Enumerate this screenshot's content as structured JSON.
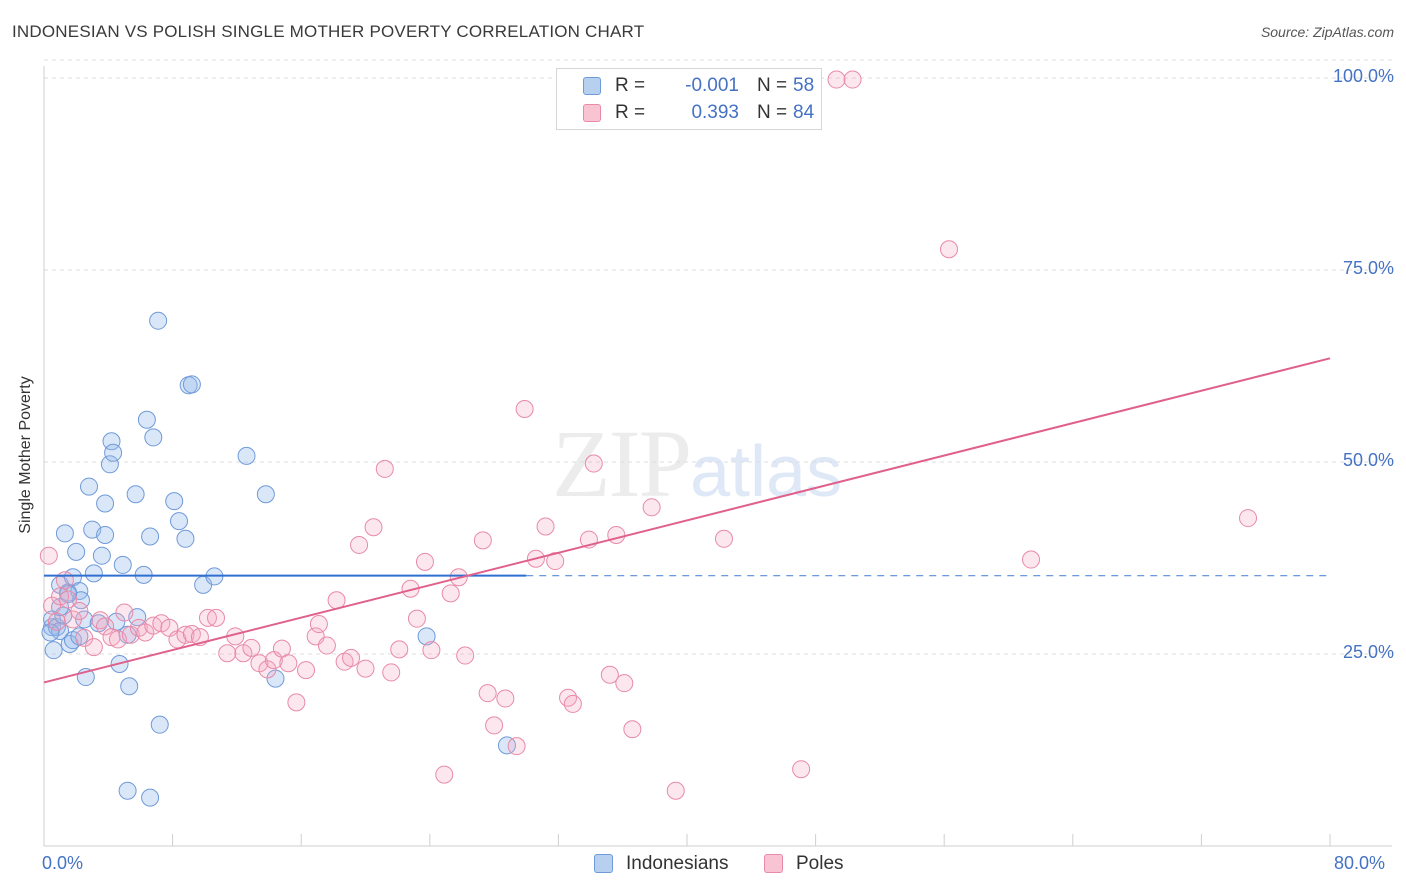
{
  "title": "INDONESIAN VS POLISH SINGLE MOTHER POVERTY CORRELATION CHART",
  "source": "Source: ZipAtlas.com",
  "watermark": {
    "zip": "ZIP",
    "atlas": "atlas"
  },
  "legend": {
    "rows": [
      {
        "r_label": "R =",
        "r_value": "-0.001",
        "n_label": "N =",
        "n_value": "58",
        "swatch_fill": "#b8d0f0",
        "swatch_stroke": "#6f9ad8"
      },
      {
        "r_label": "R =",
        "r_value": "0.393",
        "n_label": "N =",
        "n_value": "84",
        "swatch_fill": "#f8c4d4",
        "swatch_stroke": "#e88aa8"
      }
    ]
  },
  "bottom_legend": [
    {
      "label": "Indonesians",
      "fill": "#b8d0f0",
      "stroke": "#6f9ad8"
    },
    {
      "label": "Poles",
      "fill": "#f8c4d4",
      "stroke": "#e88aa8"
    }
  ],
  "colors": {
    "blue_fill": "rgba(150,185,235,0.35)",
    "blue_stroke": "#6f9ad8",
    "blue_line": "#2f6fd0",
    "pink_fill": "rgba(245,170,195,0.28)",
    "pink_stroke": "#e88aa8",
    "pink_line": "#e0608c",
    "grid": "#dddddd",
    "axis_label": "#4472c4"
  },
  "chart_data": {
    "type": "scatter",
    "title": "INDONESIAN VS POLISH SINGLE MOTHER POVERTY CORRELATION CHART",
    "xlabel": "",
    "ylabel": "Single Mother Poverty",
    "xlim": [
      0,
      80
    ],
    "ylim": [
      0,
      100
    ],
    "x_tick_labels": [
      "0.0%",
      "80.0%"
    ],
    "y_tick_labels": [
      "25.0%",
      "50.0%",
      "75.0%",
      "100.0%"
    ],
    "y_ticks": [
      25,
      50,
      75,
      100
    ],
    "x_minor_ticks": [
      0,
      8,
      16,
      24,
      32,
      40,
      48,
      56,
      64,
      72,
      80
    ],
    "series": [
      {
        "name": "Indonesians",
        "r": -0.001,
        "n": 58,
        "trend": {
          "x0": 0,
          "y0": 35.2,
          "x1": 30,
          "y1": 35.2,
          "dashed_to_x": 80
        },
        "points": [
          [
            0.5,
            28.5
          ],
          [
            0.5,
            29.5
          ],
          [
            0.6,
            25.5
          ],
          [
            0.8,
            28.5
          ],
          [
            1.0,
            34.0
          ],
          [
            1.0,
            28.0
          ],
          [
            1.2,
            30.0
          ],
          [
            1.3,
            40.7
          ],
          [
            1.5,
            33.0
          ],
          [
            1.6,
            26.3
          ],
          [
            1.8,
            35.0
          ],
          [
            1.8,
            26.8
          ],
          [
            2.0,
            38.3
          ],
          [
            2.2,
            33.2
          ],
          [
            2.3,
            32.0
          ],
          [
            2.5,
            29.5
          ],
          [
            2.6,
            22.0
          ],
          [
            2.8,
            46.8
          ],
          [
            3.0,
            41.2
          ],
          [
            3.1,
            35.5
          ],
          [
            3.4,
            29.0
          ],
          [
            3.6,
            37.8
          ],
          [
            3.8,
            44.6
          ],
          [
            3.8,
            40.5
          ],
          [
            4.1,
            49.7
          ],
          [
            4.2,
            52.7
          ],
          [
            4.3,
            51.2
          ],
          [
            4.5,
            29.2
          ],
          [
            4.7,
            23.7
          ],
          [
            4.9,
            36.6
          ],
          [
            5.2,
            27.5
          ],
          [
            5.3,
            20.8
          ],
          [
            5.7,
            45.8
          ],
          [
            5.8,
            29.8
          ],
          [
            6.2,
            35.3
          ],
          [
            6.4,
            55.5
          ],
          [
            6.6,
            40.3
          ],
          [
            6.8,
            53.2
          ],
          [
            7.1,
            68.4
          ],
          [
            7.2,
            15.8
          ],
          [
            8.1,
            44.9
          ],
          [
            8.4,
            42.3
          ],
          [
            8.8,
            40.0
          ],
          [
            9.0,
            60.0
          ],
          [
            9.2,
            60.1
          ],
          [
            9.9,
            34.0
          ],
          [
            10.6,
            35.1
          ],
          [
            12.6,
            50.8
          ],
          [
            13.8,
            45.8
          ],
          [
            14.4,
            21.8
          ],
          [
            23.8,
            27.3
          ],
          [
            28.8,
            13.1
          ],
          [
            5.2,
            7.2
          ],
          [
            6.6,
            6.3
          ],
          [
            1.5,
            32.8
          ],
          [
            1.0,
            31.1
          ],
          [
            2.2,
            27.3
          ],
          [
            0.4,
            27.8
          ]
        ]
      },
      {
        "name": "Poles",
        "r": 0.393,
        "n": 84,
        "trend": {
          "x0": 0,
          "y0": 21.3,
          "x1": 80,
          "y1": 63.5
        },
        "points": [
          [
            0.3,
            37.8
          ],
          [
            0.5,
            31.3
          ],
          [
            0.8,
            29.2
          ],
          [
            1.0,
            32.5
          ],
          [
            1.3,
            34.6
          ],
          [
            1.5,
            32.1
          ],
          [
            1.8,
            29.5
          ],
          [
            2.2,
            30.6
          ],
          [
            2.5,
            27.1
          ],
          [
            3.1,
            25.9
          ],
          [
            3.5,
            29.4
          ],
          [
            3.8,
            28.6
          ],
          [
            4.2,
            27.2
          ],
          [
            4.6,
            26.9
          ],
          [
            5.0,
            30.4
          ],
          [
            5.4,
            27.5
          ],
          [
            5.9,
            28.4
          ],
          [
            6.3,
            27.8
          ],
          [
            6.8,
            28.7
          ],
          [
            7.3,
            29.0
          ],
          [
            7.8,
            28.4
          ],
          [
            8.3,
            26.9
          ],
          [
            8.8,
            27.5
          ],
          [
            9.2,
            27.6
          ],
          [
            9.7,
            27.2
          ],
          [
            10.2,
            29.7
          ],
          [
            10.7,
            29.7
          ],
          [
            11.4,
            25.1
          ],
          [
            11.9,
            27.3
          ],
          [
            12.4,
            25.1
          ],
          [
            12.9,
            25.8
          ],
          [
            13.4,
            23.8
          ],
          [
            13.9,
            23.0
          ],
          [
            14.3,
            24.2
          ],
          [
            14.8,
            25.7
          ],
          [
            15.2,
            23.8
          ],
          [
            15.7,
            18.7
          ],
          [
            16.3,
            22.9
          ],
          [
            16.9,
            27.3
          ],
          [
            17.1,
            28.9
          ],
          [
            17.6,
            26.1
          ],
          [
            18.2,
            32.0
          ],
          [
            18.7,
            24.0
          ],
          [
            19.1,
            24.5
          ],
          [
            19.6,
            39.2
          ],
          [
            20.0,
            23.1
          ],
          [
            20.5,
            41.5
          ],
          [
            21.2,
            49.1
          ],
          [
            21.6,
            22.6
          ],
          [
            22.1,
            25.6
          ],
          [
            22.8,
            33.5
          ],
          [
            23.2,
            29.6
          ],
          [
            23.7,
            37.0
          ],
          [
            24.1,
            25.5
          ],
          [
            25.3,
            32.9
          ],
          [
            25.8,
            35.0
          ],
          [
            26.2,
            24.8
          ],
          [
            27.3,
            39.8
          ],
          [
            27.6,
            19.9
          ],
          [
            28.0,
            15.7
          ],
          [
            28.7,
            19.2
          ],
          [
            29.4,
            13.0
          ],
          [
            29.9,
            56.9
          ],
          [
            30.6,
            37.4
          ],
          [
            31.2,
            41.6
          ],
          [
            31.8,
            37.1
          ],
          [
            32.6,
            19.3
          ],
          [
            32.9,
            18.5
          ],
          [
            33.9,
            39.9
          ],
          [
            34.2,
            49.8
          ],
          [
            35.2,
            22.3
          ],
          [
            35.6,
            40.5
          ],
          [
            36.1,
            21.2
          ],
          [
            36.6,
            15.2
          ],
          [
            37.8,
            44.1
          ],
          [
            39.3,
            7.2
          ],
          [
            42.3,
            40.0
          ],
          [
            47.1,
            10.0
          ],
          [
            49.3,
            99.8
          ],
          [
            50.3,
            99.8
          ],
          [
            56.3,
            77.7
          ],
          [
            61.4,
            37.3
          ],
          [
            74.9,
            42.7
          ],
          [
            24.9,
            9.3
          ]
        ]
      }
    ]
  }
}
